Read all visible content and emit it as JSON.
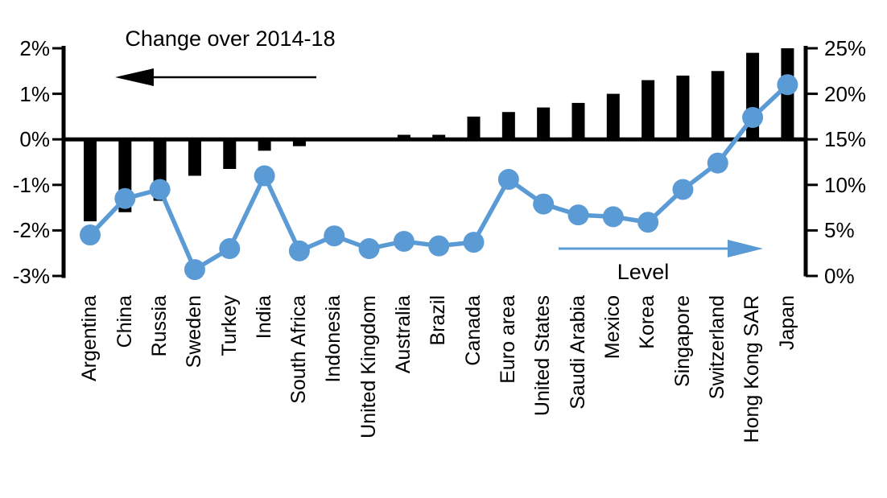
{
  "chart_data": {
    "type": "combo-bar-line",
    "categories": [
      "Argentina",
      "China",
      "Russia",
      "Sweden",
      "Turkey",
      "India",
      "South Africa",
      "Indonesia",
      "United Kingdom",
      "Australia",
      "Brazil",
      "Canada",
      "Euro area",
      "United States",
      "Saudi Arabia",
      "Mexico",
      "Korea",
      "Singapore",
      "Switzerland",
      "Hong Kong SAR",
      "Japan"
    ],
    "series": [
      {
        "name": "Change over 2014-18",
        "type": "bar",
        "axis": "left",
        "color": "#000000",
        "values": [
          -1.8,
          -1.6,
          -1.35,
          -0.8,
          -0.65,
          -0.25,
          -0.15,
          0,
          0,
          0.1,
          0.1,
          0.5,
          0.6,
          0.7,
          0.8,
          1.0,
          1.3,
          1.4,
          1.5,
          1.9,
          2.0
        ]
      },
      {
        "name": "Level",
        "type": "line",
        "axis": "right",
        "color": "#5B9BD5",
        "values": [
          4.5,
          8.5,
          9.5,
          0.7,
          3.0,
          11.0,
          2.75,
          4.4,
          3.0,
          3.8,
          3.3,
          3.7,
          10.6,
          7.9,
          6.7,
          6.5,
          5.9,
          9.5,
          12.4,
          17.4,
          21.0
        ]
      }
    ],
    "left_axis": {
      "range": [
        -3,
        2
      ],
      "unit": "%",
      "ticks": [
        "2%",
        "1%",
        "0%",
        "-1%",
        "-2%",
        "-3%"
      ]
    },
    "right_axis": {
      "range": [
        0,
        25
      ],
      "unit": "%",
      "ticks": [
        "25%",
        "20%",
        "15%",
        "10%",
        "5%",
        "0%"
      ]
    },
    "grid": false,
    "background": "#ffffff",
    "axis_color": "#000000",
    "annotations": [
      {
        "text": "Change over 2014-18",
        "arrow": "left",
        "color": "#000000"
      },
      {
        "text": "Level",
        "arrow": "right",
        "color": "#5B9BD5"
      }
    ]
  }
}
